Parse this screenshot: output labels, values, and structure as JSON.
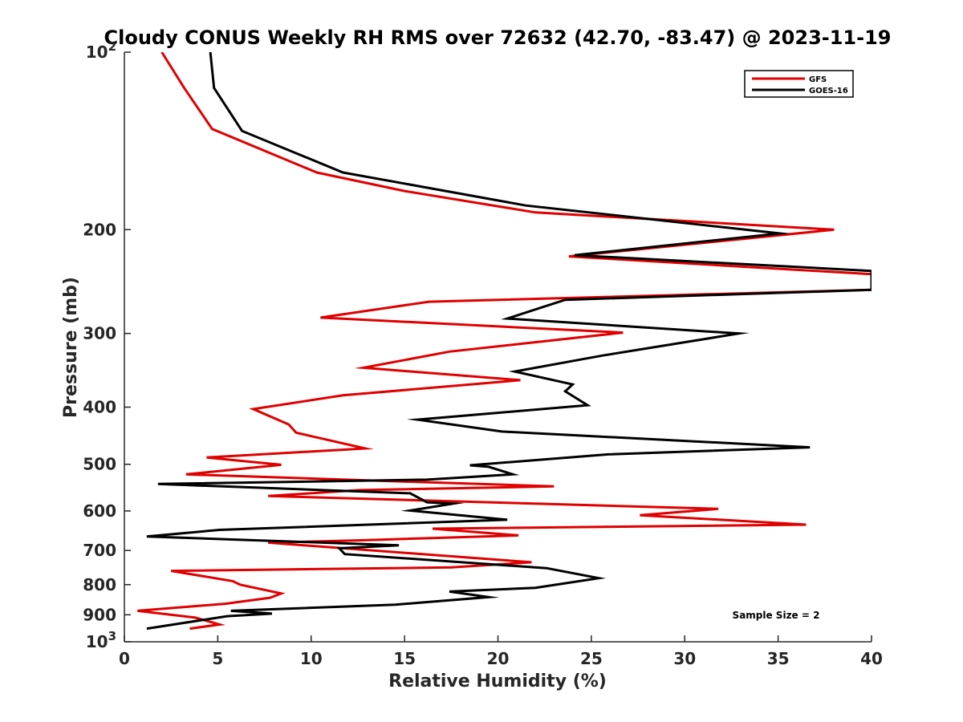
{
  "chart_data": {
    "type": "line",
    "title": "Cloudy CONUS Weekly RH RMS over 72632 (42.70, -83.47) @ 2023-11-19",
    "xlabel": "Relative Humidity (%)",
    "ylabel": "Pressure (mb)",
    "xlim": [
      0,
      40
    ],
    "ylim": [
      100,
      1000
    ],
    "y_scale": "log",
    "y_reversed": true,
    "grid": false,
    "legend_placement": "top-right",
    "annotation": "Sample Size = 2",
    "x_ticks": [
      {
        "value": 0,
        "label": "0"
      },
      {
        "value": 5,
        "label": "5"
      },
      {
        "value": 10,
        "label": "10"
      },
      {
        "value": 15,
        "label": "15"
      },
      {
        "value": 20,
        "label": "20"
      },
      {
        "value": 25,
        "label": "25"
      },
      {
        "value": 30,
        "label": "30"
      },
      {
        "value": 35,
        "label": "35"
      },
      {
        "value": 40,
        "label": "40"
      }
    ],
    "y_ticks": [
      {
        "value": 100,
        "base": "10",
        "exp": "2"
      },
      {
        "value": 200,
        "label": "200"
      },
      {
        "value": 300,
        "label": "300"
      },
      {
        "value": 400,
        "label": "400"
      },
      {
        "value": 500,
        "label": "500"
      },
      {
        "value": 600,
        "label": "600"
      },
      {
        "value": 700,
        "label": "700"
      },
      {
        "value": 800,
        "label": "800"
      },
      {
        "value": 900,
        "label": "900"
      },
      {
        "value": 1000,
        "base": "10",
        "exp": "3"
      }
    ],
    "series": [
      {
        "name": "GFS",
        "color": "#e00000",
        "points": [
          [
            2.0,
            100
          ],
          [
            3.2,
            115
          ],
          [
            4.7,
            135
          ],
          [
            10.3,
            160
          ],
          [
            15.0,
            172
          ],
          [
            22.0,
            187
          ],
          [
            38.0,
            200
          ],
          [
            23.8,
            222
          ],
          [
            40.0,
            238
          ],
          [
            40.0,
            252
          ],
          [
            40.0,
            253
          ],
          [
            16.3,
            265
          ],
          [
            10.5,
            282
          ],
          [
            26.7,
            299
          ],
          [
            17.4,
            322
          ],
          [
            12.8,
            343
          ],
          [
            21.2,
            360
          ],
          [
            11.7,
            382
          ],
          [
            6.9,
            403
          ],
          [
            8.8,
            428
          ],
          [
            9.2,
            442
          ],
          [
            12.9,
            470
          ],
          [
            4.4,
            487
          ],
          [
            8.4,
            501
          ],
          [
            3.3,
            520
          ],
          [
            12.6,
            532
          ],
          [
            23.0,
            545
          ],
          [
            12.6,
            553
          ],
          [
            7.7,
            566
          ],
          [
            31.8,
            595
          ],
          [
            27.6,
            610
          ],
          [
            36.5,
            633
          ],
          [
            16.5,
            643
          ],
          [
            21.1,
            660
          ],
          [
            12.5,
            673
          ],
          [
            7.7,
            679
          ],
          [
            21.8,
            733
          ],
          [
            17.5,
            748
          ],
          [
            2.5,
            758
          ],
          [
            5.8,
            789
          ],
          [
            6.2,
            800
          ],
          [
            8.4,
            828
          ],
          [
            7.8,
            842
          ],
          [
            5.4,
            862
          ],
          [
            0.7,
            886
          ],
          [
            3.8,
            910
          ],
          [
            5.1,
            935
          ],
          [
            3.5,
            950
          ]
        ]
      },
      {
        "name": "GOES-16",
        "color": "#000000",
        "points": [
          [
            4.6,
            100
          ],
          [
            4.8,
            115
          ],
          [
            6.3,
            136
          ],
          [
            11.7,
            160
          ],
          [
            21.5,
            182
          ],
          [
            35.1,
            203
          ],
          [
            24.1,
            221
          ],
          [
            40.0,
            235
          ],
          [
            40.0,
            252
          ],
          [
            40.0,
            253
          ],
          [
            23.6,
            263
          ],
          [
            20.5,
            283
          ],
          [
            32.9,
            300
          ],
          [
            25.6,
            327
          ],
          [
            20.9,
            348
          ],
          [
            24.0,
            366
          ],
          [
            23.6,
            376
          ],
          [
            24.8,
            397
          ],
          [
            15.7,
            420
          ],
          [
            20.2,
            440
          ],
          [
            36.7,
            468
          ],
          [
            25.9,
            481
          ],
          [
            18.5,
            502
          ],
          [
            19.5,
            505
          ],
          [
            20.8,
            520
          ],
          [
            16.2,
            531
          ],
          [
            1.8,
            540
          ],
          [
            15.3,
            560
          ],
          [
            16.2,
            580
          ],
          [
            17.6,
            583
          ],
          [
            15.3,
            599
          ],
          [
            20.5,
            621
          ],
          [
            5.1,
            646
          ],
          [
            1.2,
            663
          ],
          [
            14.7,
            686
          ],
          [
            11.5,
            694
          ],
          [
            11.8,
            710
          ],
          [
            22.6,
            750
          ],
          [
            25.4,
            780
          ],
          [
            22.0,
            810
          ],
          [
            17.4,
            822
          ],
          [
            19.5,
            840
          ],
          [
            14.5,
            865
          ],
          [
            5.7,
            886
          ],
          [
            7.9,
            896
          ],
          [
            5.5,
            905
          ],
          [
            1.2,
            950
          ]
        ]
      }
    ]
  }
}
